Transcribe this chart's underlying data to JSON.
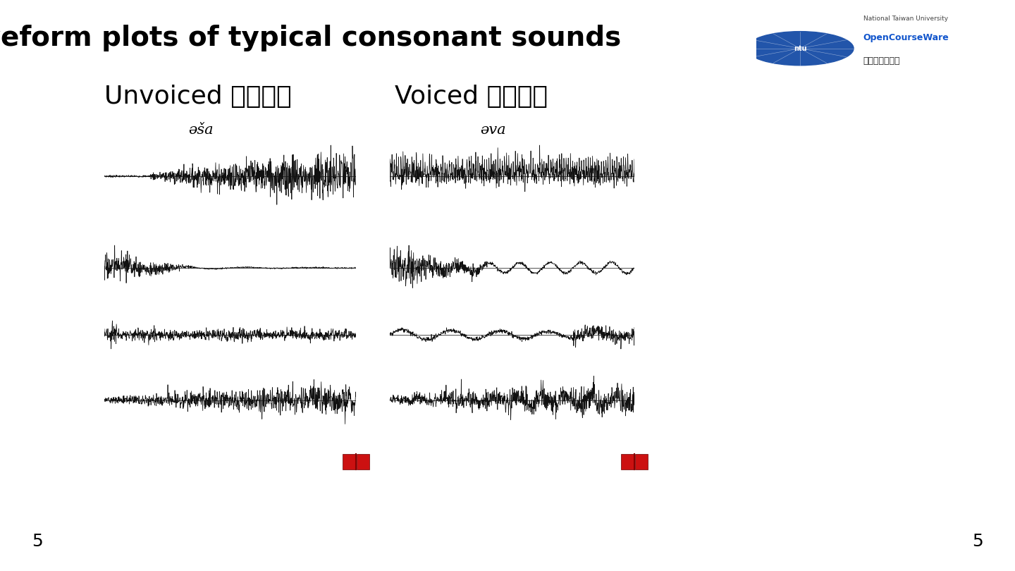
{
  "title": "Waveform plots of typical consonant sounds",
  "title_fontsize": 28,
  "title_fontweight": "bold",
  "bg_color": "#ffffff",
  "left_label": "Unvoiced （清音）",
  "right_label": "Voiced （濁音）",
  "label_fontsize": 26,
  "left_phoneme": "əša",
  "right_phoneme": "əva",
  "phoneme_fontsize": 15,
  "page_number": "5",
  "waveform_color": "#111111",
  "waveform_linewidth": 0.55,
  "n_waveforms": 4,
  "logo_text1": "National Taiwan University",
  "logo_text2": "OpenCourseWare",
  "logo_text3": "臺大開放式課程",
  "seed": 42
}
